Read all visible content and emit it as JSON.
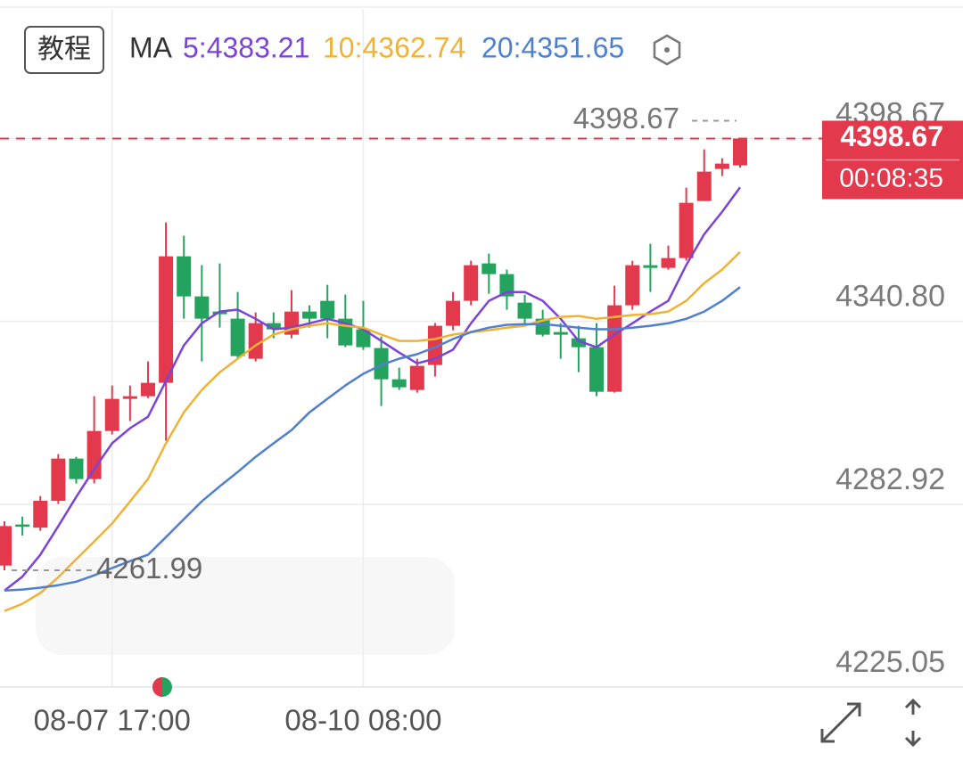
{
  "chart_data": {
    "type": "candlestick",
    "tutorial_button": "教程",
    "ma_label": "MA",
    "categories": [
      null,
      null,
      null,
      null,
      null,
      null,
      "08-07 17:00",
      null,
      null,
      null,
      null,
      null,
      null,
      null,
      null,
      null,
      null,
      null,
      null,
      null,
      "08-10 08:00",
      null,
      null,
      null,
      null,
      null,
      null,
      null,
      null,
      null,
      null,
      null,
      null,
      null,
      null,
      null,
      null,
      null,
      null,
      null,
      null,
      null
    ],
    "open": [
      4263.5,
      4276.5,
      4275.5,
      4284,
      4297.36,
      4290.87,
      4306.1,
      4316.26,
      4317.1,
      4321.34,
      4361.39,
      4348.7,
      4343.9,
      4341.65,
      4328.95,
      4340.24,
      4336.57,
      4343.9,
      4347.29,
      4341.65,
      4338.26,
      4332.34,
      4322.46,
      4319.08,
      4326.98,
      4339.39,
      4347.29,
      4359.14,
      4355.75,
      4346.72,
      4341.65,
      4337.41,
      4335.44,
      4332.62,
      4318.51,
      4345.88,
      4358.57,
      4357.73,
      4360.83,
      4378.88,
      4389.04,
      4390.17
    ],
    "high": [
      4277.5,
      4279,
      4285.5,
      4298.77,
      4297.92,
      4317.1,
      4320.49,
      4320.49,
      4328.11,
      4372.11,
      4367.88,
      4358.57,
      4359.14,
      4350.11,
      4343.62,
      4343.62,
      4350.67,
      4345.88,
      4352.37,
      4349.26,
      4347.29,
      4336.0,
      4326.13,
      4328.95,
      4340.24,
      4350.11,
      4359.98,
      4362.24,
      4357.16,
      4349.26,
      4344.47,
      4340.24,
      4339.39,
      4340.24,
      4352.08,
      4359.98,
      4365.34,
      4364.78,
      4383.11,
      4395.24,
      4392.42,
      4398.67
    ],
    "low": [
      4261.99,
      4273,
      4274.5,
      4283,
      4289.46,
      4289.5,
      4305,
      4309.21,
      4316.5,
      4303.0,
      4341.65,
      4328.11,
      4338.83,
      4328.95,
      4328.11,
      4335.44,
      4335.44,
      4338.83,
      4335.44,
      4332.62,
      4331.77,
      4314.0,
      4319.08,
      4318.23,
      4323.31,
      4337.98,
      4345.88,
      4349.54,
      4344.47,
      4340.24,
      4336.0,
      4328.95,
      4324.72,
      4317.1,
      4318.23,
      4344.47,
      4350.11,
      4357.16,
      4360.0,
      4378.88,
      4386.78,
      4389.5
    ],
    "close": [
      4276,
      4275.8,
      4284,
      4297.36,
      4290.87,
      4306.1,
      4316.26,
      4317.1,
      4321.34,
      4361.39,
      4348.7,
      4341.65,
      4343.06,
      4329.8,
      4340.24,
      4338.26,
      4343.9,
      4341.65,
      4341.65,
      4333.18,
      4332.62,
      4322.46,
      4319.93,
      4326.7,
      4339.39,
      4347.29,
      4358.57,
      4355.75,
      4348.7,
      4341.65,
      4336.57,
      4336.57,
      4332.62,
      4318.51,
      4345.88,
      4358.57,
      4357.73,
      4360.83,
      4378.32,
      4388.19,
      4390.73,
      4398.67
    ],
    "up_color": "#e2394d",
    "down_color": "#23a35e",
    "series": [
      {
        "name": "5:4383.21",
        "color": "#7a44d6",
        "values": [
          4255.6,
          4260,
          4266.9,
          4276,
          4285.2,
          4294,
          4302.2,
          4307,
          4310.6,
          4321.9,
          4333.2,
          4340.2,
          4343.9,
          4344.5,
          4341.6,
          4338.3,
          4338.8,
          4340.2,
          4341.6,
          4340.2,
          4338.3,
          4334.6,
          4330.9,
          4327.5,
          4329.0,
          4331.8,
          4340.2,
          4347.3,
          4350.1,
          4350.1,
          4347.3,
          4341.6,
          4334.6,
          4332.6,
          4336.6,
          4340.2,
          4343.9,
          4347.3,
          4358.6,
          4368.4,
          4375.5,
          4383.21
        ]
      },
      {
        "name": "10:4362.74",
        "color": "#f0b235",
        "values": [
          4249.1,
          4251.4,
          4254.8,
          4259.8,
          4265.5,
          4271.1,
          4276.8,
          4283.8,
          4290.9,
          4302.2,
          4312.0,
          4319.1,
          4324.7,
          4329.0,
          4333.2,
          4336.6,
          4338.3,
          4339.4,
          4340.2,
          4339.4,
          4338.8,
          4336.6,
          4334.6,
          4334.6,
          4335.2,
          4336.6,
          4337.4,
          4338.0,
          4338.8,
          4339.4,
          4341.1,
          4342.2,
          4342.5,
          4341.6,
          4342.2,
          4342.8,
          4343.1,
          4343.9,
          4347.3,
          4352.9,
          4357.2,
          4362.74
        ]
      },
      {
        "name": "20:4351.65",
        "color": "#4f7fcf",
        "values": [
          4255.6,
          4255.9,
          4256.5,
          4257.3,
          4258.4,
          4260.4,
          4262.7,
          4264.9,
          4266.9,
          4272.5,
          4278.2,
          4283.8,
          4288.6,
          4293.1,
          4297.9,
          4302.2,
          4306.4,
          4312.0,
          4316.3,
          4320.5,
          4324.2,
          4327.0,
          4329.0,
          4330.4,
          4332.6,
          4335.2,
          4337.4,
          4338.8,
          4339.7,
          4339.9,
          4339.9,
          4339.4,
          4338.8,
          4338.3,
          4338.3,
          4338.8,
          4339.4,
          4340.2,
          4341.6,
          4343.9,
          4347.3,
          4351.65
        ]
      }
    ],
    "ylim": [
      4225.05,
      4439.7
    ],
    "yticks": [
      {
        "value": 4225.05,
        "label": "4225.05"
      },
      {
        "value": 4282.92,
        "label": "4282.92"
      },
      {
        "value": 4340.8,
        "label": "4340.80"
      },
      {
        "value": 4398.67,
        "label": "4398.67"
      }
    ],
    "grid": true,
    "high_marker": {
      "value": 4398.67,
      "label": "4398.67"
    },
    "low_marker": {
      "value": 4261.99,
      "label": "4261.99"
    },
    "last_price": {
      "value": 4398.67,
      "label": "4398.67"
    },
    "countdown": "00:08:35"
  }
}
